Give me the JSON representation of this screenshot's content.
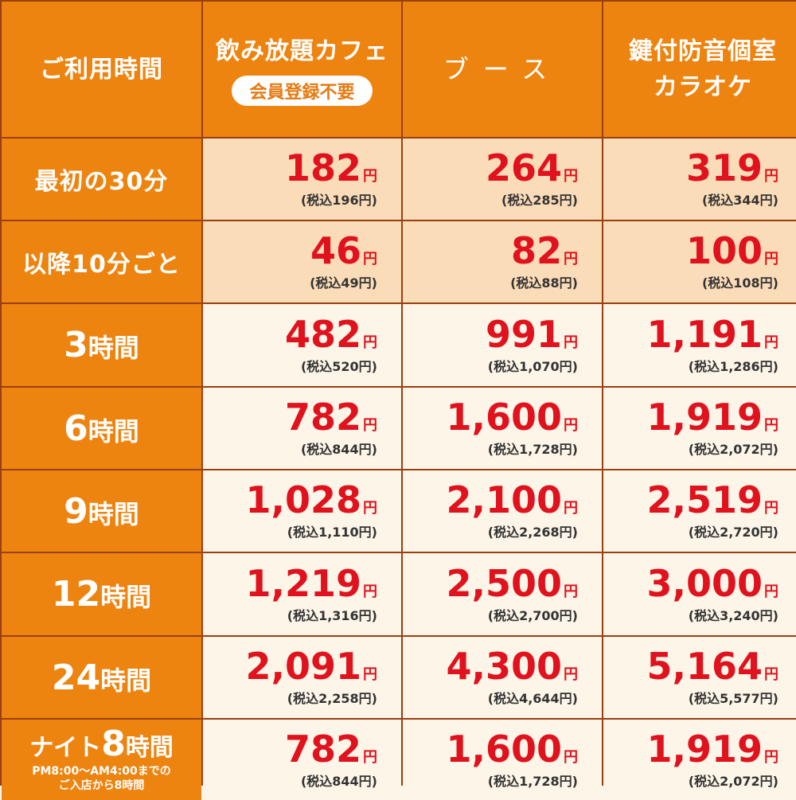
{
  "header": {
    "col0": "ご利用時間",
    "col1": "飲み放題カフェ",
    "col1_badge": "会員登録不要",
    "col2": "ブース",
    "col3_line1": "鍵付防音個室",
    "col3_line2": "カラオケ"
  },
  "yen_suffix": "円",
  "rows": [
    {
      "label": "最初の30分",
      "prices": [
        {
          "main": "182",
          "tax": "(税込196円)"
        },
        {
          "main": "264",
          "tax": "(税込285円)"
        },
        {
          "main": "319",
          "tax": "(税込344円)"
        }
      ]
    },
    {
      "label": "以降10分ごと",
      "prices": [
        {
          "main": "46",
          "tax": "(税込49円)"
        },
        {
          "main": "82",
          "tax": "(税込88円)"
        },
        {
          "main": "100",
          "tax": "(税込108円)"
        }
      ]
    },
    {
      "label_num": "3",
      "label_suf": "時間",
      "prices": [
        {
          "main": "482",
          "tax": "(税込520円)"
        },
        {
          "main": "991",
          "tax": "(税込1,070円)"
        },
        {
          "main": "1,191",
          "tax": "(税込1,286円)"
        }
      ]
    },
    {
      "label_num": "6",
      "label_suf": "時間",
      "prices": [
        {
          "main": "782",
          "tax": "(税込844円)"
        },
        {
          "main": "1,600",
          "tax": "(税込1,728円)"
        },
        {
          "main": "1,919",
          "tax": "(税込2,072円)"
        }
      ]
    },
    {
      "label_num": "9",
      "label_suf": "時間",
      "prices": [
        {
          "main": "1,028",
          "tax": "(税込1,110円)"
        },
        {
          "main": "2,100",
          "tax": "(税込2,268円)"
        },
        {
          "main": "2,519",
          "tax": "(税込2,720円)"
        }
      ]
    },
    {
      "label_num": "12",
      "label_suf": "時間",
      "prices": [
        {
          "main": "1,219",
          "tax": "(税込1,316円)"
        },
        {
          "main": "2,500",
          "tax": "(税込2,700円)"
        },
        {
          "main": "3,000",
          "tax": "(税込3,240円)"
        }
      ]
    },
    {
      "label_num": "24",
      "label_suf": "時間",
      "prices": [
        {
          "main": "2,091",
          "tax": "(税込2,258円)"
        },
        {
          "main": "4,300",
          "tax": "(税込4,644円)"
        },
        {
          "main": "5,164",
          "tax": "(税込5,577円)"
        }
      ]
    },
    {
      "label_pre": "ナイト",
      "label_num": "8",
      "label_suf": "時間",
      "note_line1": "PM8:00～AM4:00までの",
      "note_line2": "ご入店から8時間",
      "prices": [
        {
          "main": "782",
          "tax": "(税込844円)"
        },
        {
          "main": "1,600",
          "tax": "(税込1,728円)"
        },
        {
          "main": "1,919",
          "tax": "(税込2,072円)"
        }
      ]
    }
  ],
  "colors": {
    "orange": "#ee8410",
    "peach": "#fbdcb8",
    "cream": "#fdf5e8",
    "price_red": "#e0121d",
    "border": "#9a3f10"
  }
}
